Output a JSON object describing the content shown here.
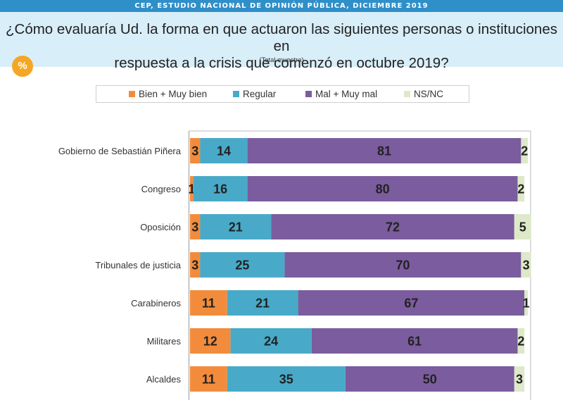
{
  "header": {
    "topbar": "CEP, ESTUDIO NACIONAL DE OPINIÓN PÚBLICA, DICIEMBRE 2019",
    "title_line1": "¿Cómo evaluaría Ud. la forma en que actuaron las siguientes personas o instituciones en",
    "title_line2": "respuesta a la crisis que comenzó en octubre 2019?",
    "subtitle": "(Total muestra)",
    "badge": "%"
  },
  "chart_data": {
    "type": "bar",
    "orientation": "horizontal",
    "stacked": true,
    "categories": [
      "Gobierno de Sebastián Piñera",
      "Congreso",
      "Oposición",
      "Tribunales de justicia",
      "Carabineros",
      "Militares",
      "Alcaldes"
    ],
    "series": [
      {
        "name": "Bien + Muy bien",
        "color": "#f28c3c",
        "values": [
          3,
          1,
          3,
          3,
          11,
          12,
          11
        ]
      },
      {
        "name": "Regular",
        "color": "#48aac8",
        "values": [
          14,
          16,
          21,
          25,
          21,
          24,
          35
        ]
      },
      {
        "name": "Mal + Muy mal",
        "color": "#7b5c9e",
        "values": [
          81,
          80,
          72,
          70,
          67,
          61,
          50
        ]
      },
      {
        "name": "NS/NC",
        "color": "#dde9c9",
        "values": [
          2,
          2,
          5,
          3,
          1,
          2,
          3
        ]
      }
    ],
    "xlim": [
      0,
      100
    ],
    "legend_position": "top",
    "grid": false
  }
}
